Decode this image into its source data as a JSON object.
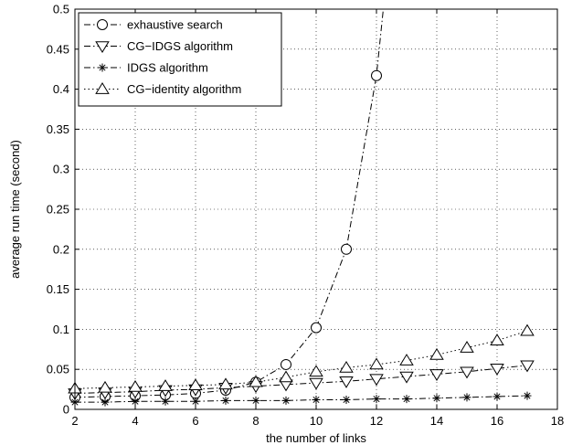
{
  "chart_data": {
    "type": "line",
    "title": "",
    "xlabel": "the number of links",
    "ylabel": "average run time (second)",
    "xlim": [
      2,
      18
    ],
    "ylim": [
      0,
      0.5
    ],
    "xticks": [
      2,
      4,
      6,
      8,
      10,
      12,
      14,
      16,
      18
    ],
    "yticks": [
      0,
      0.05,
      0.1,
      0.15,
      0.2,
      0.25,
      0.3,
      0.35,
      0.4,
      0.45,
      0.5
    ],
    "xtick_labels": [
      "2",
      "4",
      "6",
      "8",
      "10",
      "12",
      "14",
      "16",
      "18"
    ],
    "ytick_labels": [
      "0",
      "0.05",
      "0.1",
      "0.15",
      "0.2",
      "0.25",
      "0.3",
      "0.35",
      "0.4",
      "0.45",
      "0.5"
    ],
    "grid": true,
    "legend_position": "top-left",
    "series": [
      {
        "name": "exhaustive search",
        "marker": "circle",
        "line_style": "dash-dot",
        "x": [
          2,
          3,
          4,
          5,
          6,
          7,
          8,
          9,
          10,
          11,
          12,
          12.5
        ],
        "y": [
          0.015,
          0.016,
          0.017,
          0.018,
          0.02,
          0.024,
          0.034,
          0.056,
          0.102,
          0.2,
          0.417,
          0.6
        ]
      },
      {
        "name": "CG−IDGS algorithm",
        "marker": "triangle-down",
        "line_style": "dash-dot",
        "x": [
          2,
          3,
          4,
          5,
          6,
          7,
          8,
          9,
          10,
          11,
          12,
          13,
          14,
          15,
          16,
          17
        ],
        "y": [
          0.02,
          0.021,
          0.022,
          0.024,
          0.025,
          0.027,
          0.029,
          0.031,
          0.033,
          0.035,
          0.038,
          0.041,
          0.044,
          0.047,
          0.051,
          0.055
        ]
      },
      {
        "name": "IDGS algorithm",
        "marker": "star",
        "line_style": "dash-dot",
        "x": [
          2,
          3,
          4,
          5,
          6,
          7,
          8,
          9,
          10,
          11,
          12,
          13,
          14,
          15,
          16,
          17
        ],
        "y": [
          0.009,
          0.009,
          0.01,
          0.01,
          0.01,
          0.011,
          0.011,
          0.011,
          0.012,
          0.012,
          0.013,
          0.013,
          0.014,
          0.015,
          0.016,
          0.017
        ]
      },
      {
        "name": "CG−identity algorithm",
        "marker": "triangle-up",
        "line_style": "dotted",
        "x": [
          2,
          3,
          4,
          5,
          6,
          7,
          8,
          9,
          10,
          11,
          12,
          13,
          14,
          15,
          16,
          17
        ],
        "y": [
          0.026,
          0.027,
          0.028,
          0.029,
          0.03,
          0.031,
          0.034,
          0.04,
          0.047,
          0.052,
          0.056,
          0.061,
          0.068,
          0.077,
          0.086,
          0.098
        ]
      }
    ],
    "colors": {
      "line": "#000000",
      "grid": "#000000",
      "background": "#ffffff"
    }
  }
}
